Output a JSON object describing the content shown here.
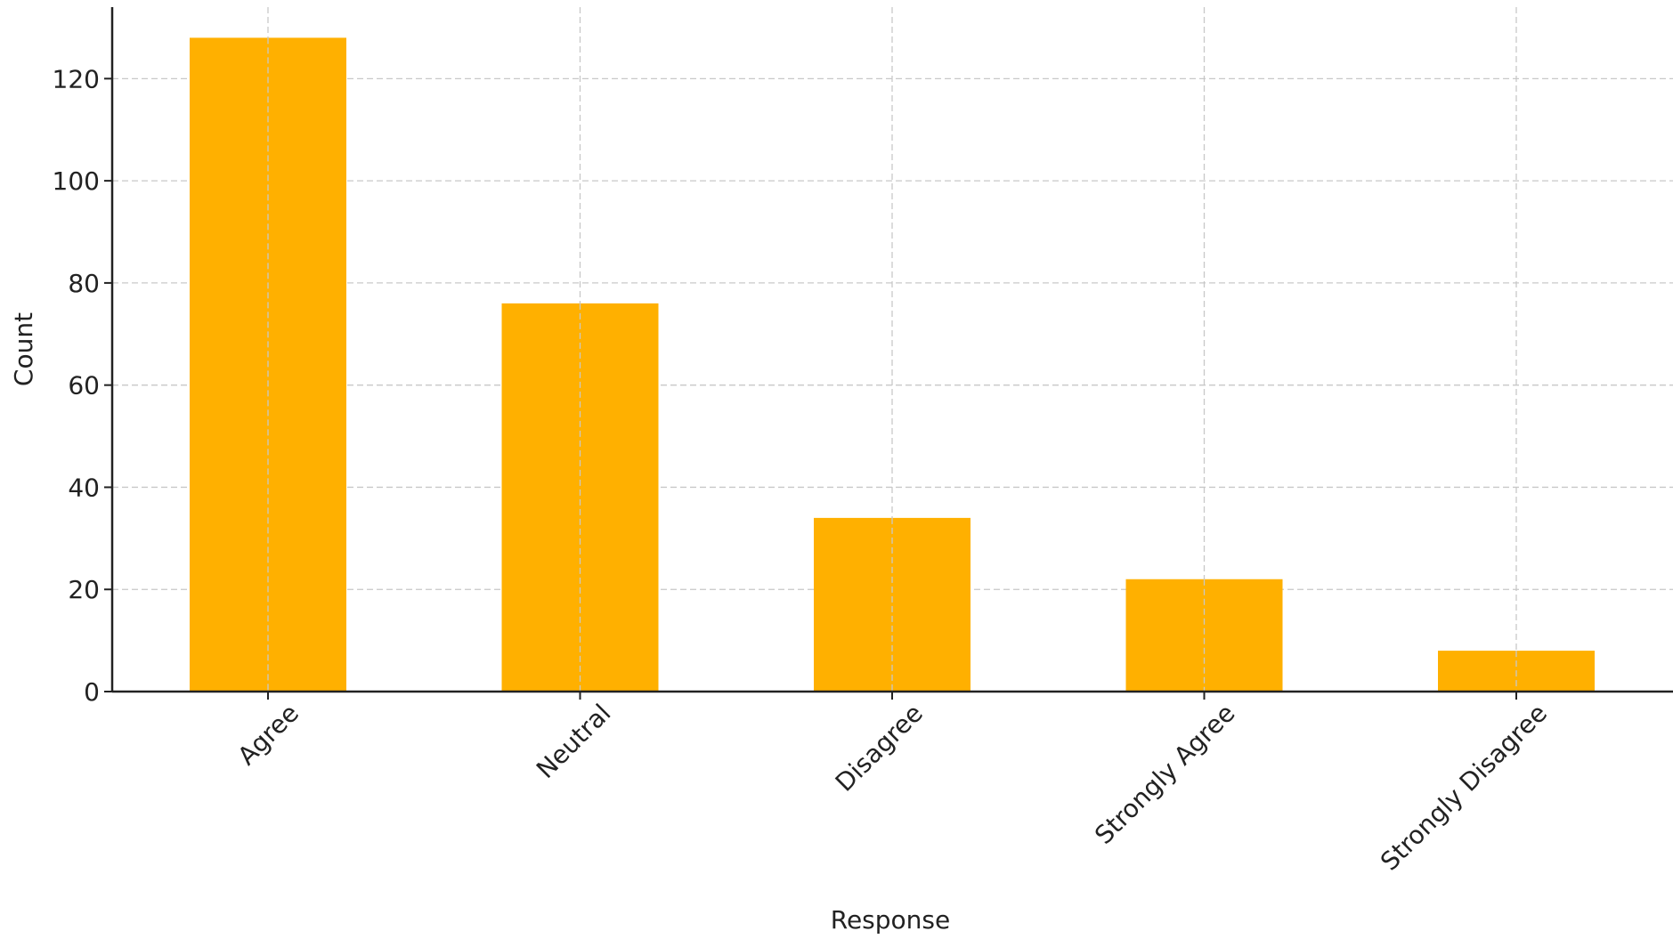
{
  "chart_data": {
    "type": "bar",
    "title": "",
    "xlabel": "Response",
    "ylabel": "Count",
    "categories": [
      "Agree",
      "Neutral",
      "Disagree",
      "Strongly Agree",
      "Strongly Disagree"
    ],
    "values": [
      128,
      76,
      34,
      22,
      8
    ],
    "ylim": [
      0,
      134
    ],
    "yticks": [
      0,
      20,
      40,
      60,
      80,
      100,
      120
    ],
    "grid": true,
    "bar_color": "#FFB000",
    "xtick_rotation_deg": -45
  }
}
